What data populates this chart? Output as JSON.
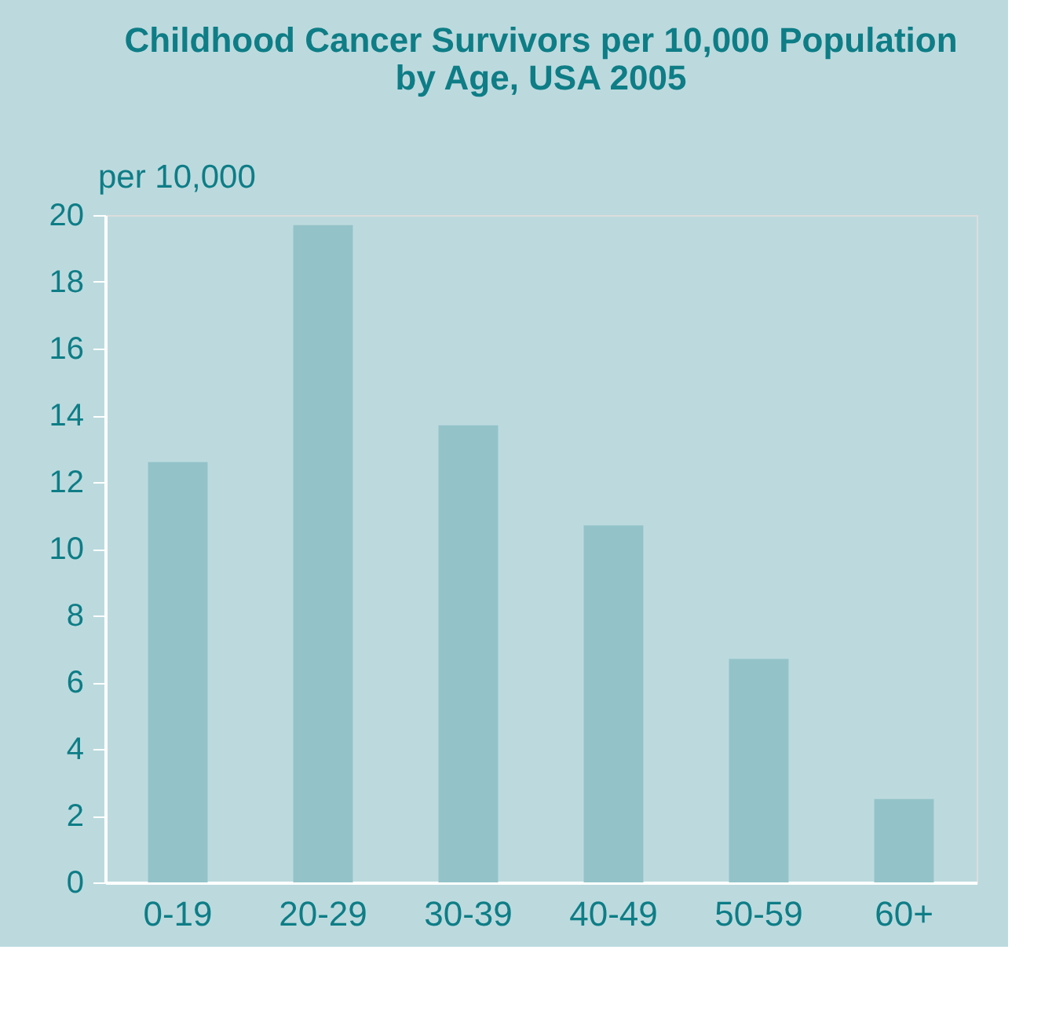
{
  "chart_data": {
    "type": "bar",
    "title": [
      "Childhood Cancer Survivors per 10,000 Population",
      "by Age, USA 2005"
    ],
    "ylabel": "per 10,000",
    "categories": [
      "0-19",
      "20-29",
      "30-39",
      "40-49",
      "50-59",
      "60+"
    ],
    "values": [
      12.6,
      19.7,
      13.7,
      10.7,
      6.7,
      2.5
    ],
    "color": "#93c3c9",
    "ylim": [
      0,
      20
    ],
    "yticks": [
      0,
      2,
      4,
      6,
      8,
      10,
      12,
      14,
      16,
      18,
      20
    ],
    "grid": false
  }
}
